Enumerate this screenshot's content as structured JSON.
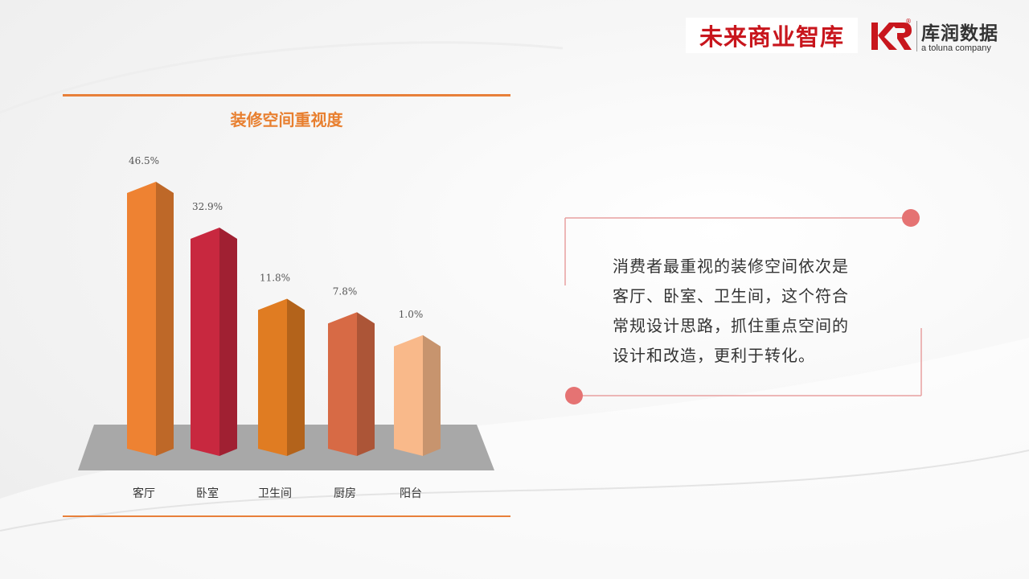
{
  "logos": {
    "left_text": "未来商业智库",
    "right_brand": "库润数据",
    "right_sub": "a toluna company",
    "right_mark": "KR",
    "registered": "®"
  },
  "chart_data": {
    "type": "bar",
    "title": "装修空间重视度",
    "categories": [
      "客厅",
      "卧室",
      "卫生间",
      "厨房",
      "阳台"
    ],
    "values": [
      46.5,
      32.9,
      11.8,
      7.8,
      1.0
    ],
    "value_labels": [
      "46.5%",
      "32.9%",
      "11.8%",
      "7.8%",
      "1.0%"
    ],
    "unit": "%",
    "colors": [
      "#ee8232",
      "#c8283f",
      "#e07c22",
      "#d76a45",
      "#f9b98a"
    ],
    "style": "3d-column",
    "grid": false,
    "legend": "none"
  },
  "description": {
    "text": "消费者最重视的装修空间依次是客厅、卧室、卫生间，这个符合常规设计思路，抓住重点空间的设计和改造，更利于转化。",
    "lines": [
      "消费者最重视的装修空间依次是",
      "客厅、卧室、卫生间，这个符合",
      "常规设计思路，抓住重点空间的",
      "设计和改造，更利于转化。"
    ]
  },
  "accent_color": "#e87f2f",
  "frame_color": "#e88080"
}
